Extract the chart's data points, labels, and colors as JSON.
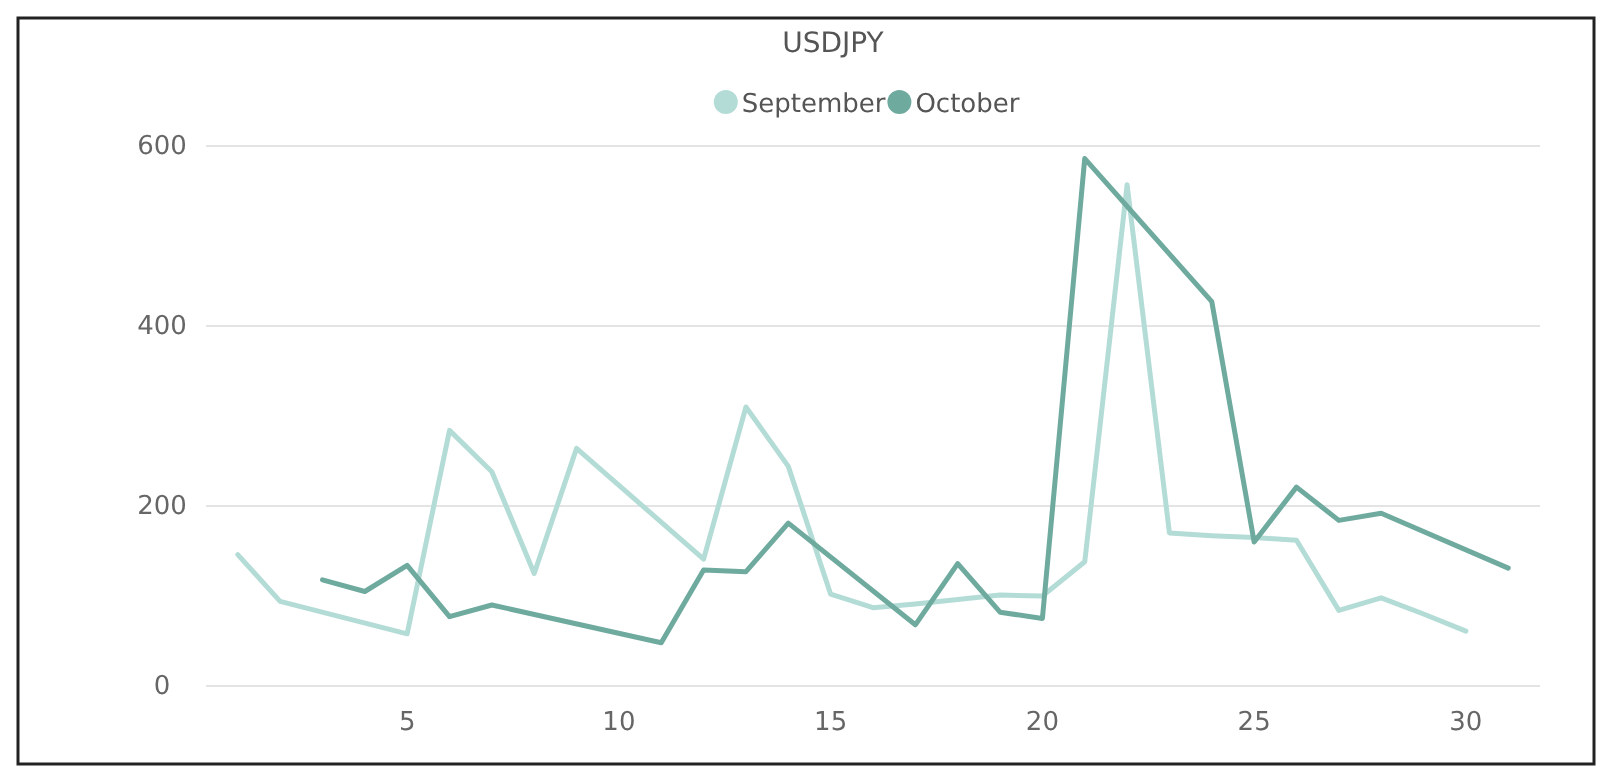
{
  "chart_data": {
    "type": "line",
    "title": "USDJPY",
    "legend": "top",
    "grid": "y",
    "marker": "none",
    "line_style": "solid",
    "xlim": [
      0.25,
      31.75
    ],
    "xticks": [
      5,
      10,
      15,
      20,
      25,
      30
    ],
    "ylim": [
      0,
      600
    ],
    "yticks": [
      0,
      200,
      400,
      600
    ],
    "series": [
      {
        "name": "September",
        "color": "#b4dcd6",
        "x": [
          1,
          2,
          5,
          6,
          7,
          8,
          9,
          12,
          13,
          14,
          15,
          16,
          17,
          18,
          19,
          20,
          21,
          22,
          23,
          24,
          25,
          26,
          27,
          28,
          29,
          30
        ],
        "values": [
          146,
          94,
          58,
          284,
          238,
          125,
          264,
          141,
          310,
          244,
          102,
          87,
          91,
          96,
          101,
          100,
          138,
          557,
          170,
          167,
          165,
          162,
          84,
          98,
          80,
          61
        ]
      },
      {
        "name": "October",
        "color": "#6faa9f",
        "x": [
          3,
          4,
          5,
          6,
          7,
          11,
          12,
          13,
          14,
          17,
          18,
          19,
          20,
          21,
          24,
          25,
          26,
          27,
          28,
          31
        ],
        "values": [
          118,
          105,
          134,
          77,
          90,
          48,
          129,
          127,
          181,
          68,
          136,
          82,
          75,
          586,
          427,
          160,
          221,
          184,
          192,
          131
        ]
      }
    ]
  }
}
